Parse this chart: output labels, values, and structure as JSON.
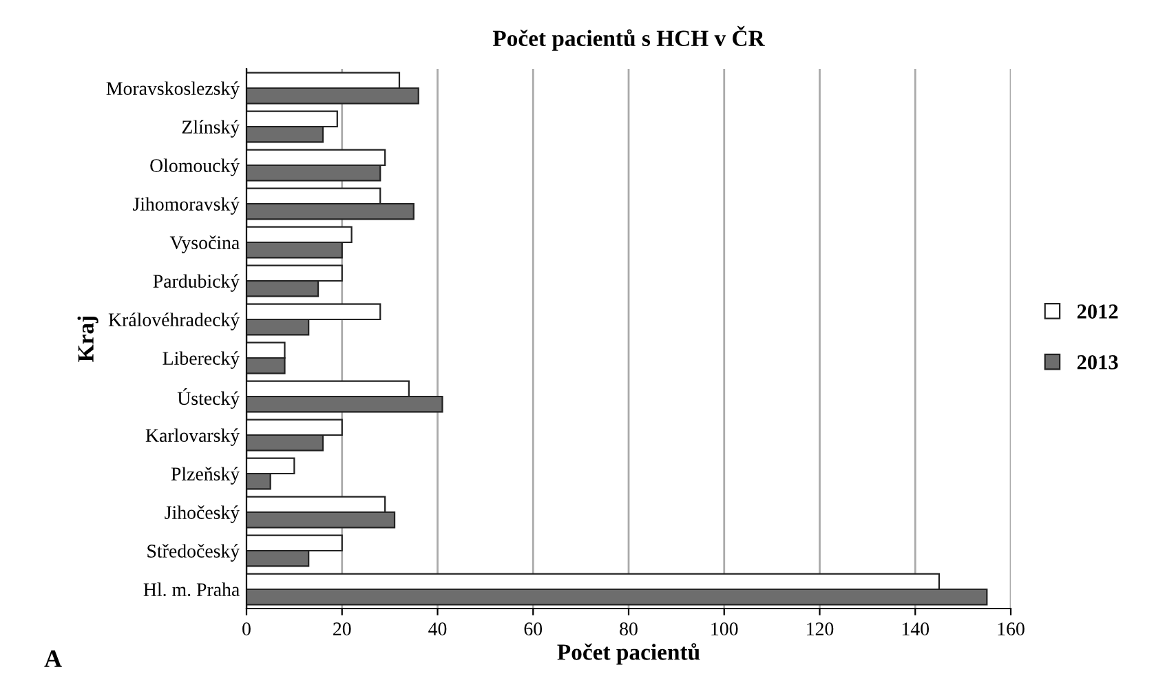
{
  "chart_data": {
    "type": "bar",
    "orientation": "horizontal",
    "title": "Počet pacientů s HCH v ČR",
    "xlabel": "Počet pacientů",
    "ylabel": "Kraj",
    "categories": [
      "Moravskoslezský",
      "Zlínský",
      "Olomoucký",
      "Jihomoravský",
      "Vysočina",
      "Pardubický",
      "Královéhradecký",
      "Liberecký",
      "Ústecký",
      "Karlovarský",
      "Plzeňský",
      "Jihočeský",
      "Středočeský",
      "Hl. m. Praha"
    ],
    "series": [
      {
        "name": "2012",
        "color": "#ffffff",
        "values": [
          32,
          19,
          29,
          28,
          22,
          20,
          28,
          8,
          34,
          20,
          10,
          29,
          20,
          145
        ]
      },
      {
        "name": "2013",
        "color": "#6d6d6d",
        "values": [
          36,
          16,
          28,
          35,
          20,
          15,
          13,
          8,
          41,
          16,
          5,
          31,
          13,
          155
        ]
      }
    ],
    "xlim": [
      0,
      160
    ],
    "xticks": [
      0,
      20,
      40,
      60,
      80,
      100,
      120,
      140,
      160
    ],
    "grid": "x",
    "legend": "right",
    "annotations": [
      "A"
    ]
  }
}
